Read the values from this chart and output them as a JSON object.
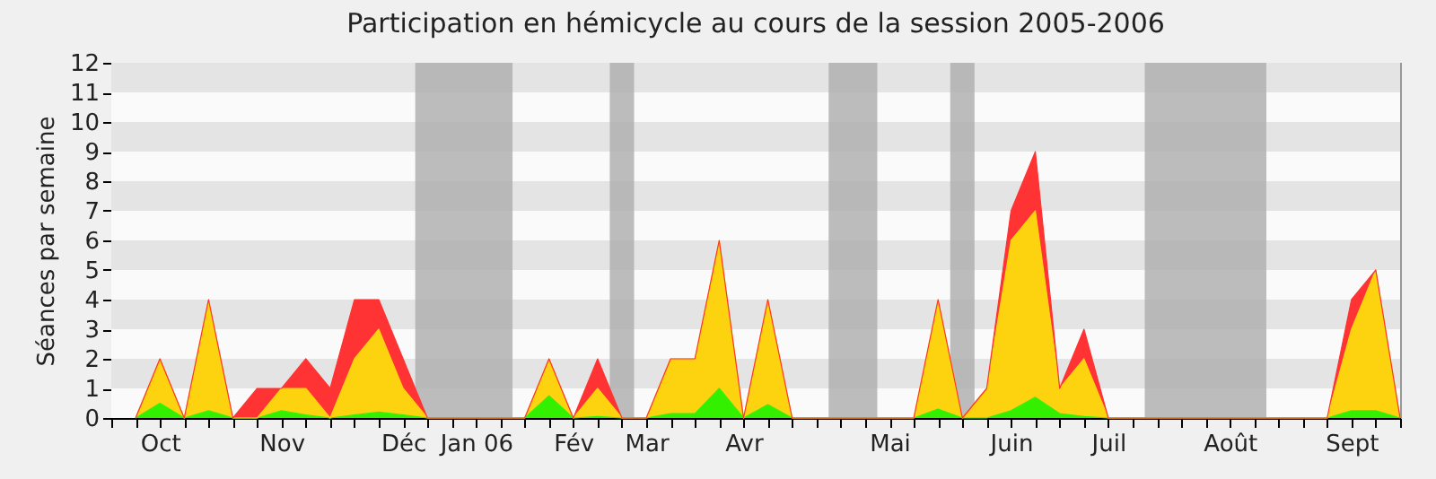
{
  "chart_data": {
    "type": "area",
    "stacked": true,
    "title": "Participation en hémicycle au cours de la session 2005-2006",
    "ylabel": "Séances par semaine",
    "categories": [
      null,
      "Oct",
      null,
      null,
      null,
      null,
      "Nov",
      null,
      null,
      null,
      null,
      "Déc",
      null,
      null,
      "Jan 06",
      null,
      null,
      null,
      "Fév",
      null,
      null,
      "Mar",
      null,
      null,
      null,
      "Avr",
      null,
      null,
      null,
      null,
      null,
      "Mai",
      null,
      null,
      null,
      null,
      "Juin",
      null,
      null,
      null,
      "Juil",
      null,
      null,
      null,
      null,
      "Août",
      null,
      null,
      null,
      null,
      "Sept",
      null,
      null
    ],
    "series": [
      {
        "color": "#33f000",
        "values": [
          0,
          0.5,
          0,
          0.25,
          0,
          0,
          0.25,
          0.1,
          0,
          0.1,
          0.2,
          0.1,
          0,
          0,
          0,
          0,
          0,
          0.75,
          0,
          0.05,
          0,
          0,
          0.15,
          0.15,
          1,
          0,
          0.45,
          0,
          0,
          0,
          0,
          0,
          0,
          0.3,
          0,
          0,
          0.25,
          0.7,
          0.15,
          0.05,
          0,
          0,
          0,
          0,
          0,
          0,
          0,
          0,
          0,
          0,
          0.25,
          0.25,
          0
        ]
      },
      {
        "color": "#fdd20e",
        "values": [
          0,
          1.5,
          0,
          3.75,
          0,
          0,
          0.75,
          0.9,
          0,
          1.9,
          2.8,
          0.9,
          0,
          0,
          0,
          0,
          0,
          1.25,
          0,
          0.95,
          0,
          0,
          1.85,
          1.85,
          5,
          0,
          3.55,
          0,
          0,
          0,
          0,
          0,
          0,
          3.7,
          0,
          1,
          5.75,
          6.3,
          0.85,
          1.95,
          0,
          0,
          0,
          0,
          0,
          0,
          0,
          0,
          0,
          0,
          2.75,
          4.75,
          0
        ]
      },
      {
        "color": "#ff3333",
        "values": [
          0,
          0,
          0,
          0,
          0,
          1,
          0,
          1,
          1,
          2,
          1,
          1,
          0,
          0,
          0,
          0,
          0,
          0,
          0,
          1,
          0,
          0,
          0,
          0,
          0,
          0,
          0,
          0,
          0,
          0,
          0,
          0,
          0,
          0,
          0,
          0,
          1,
          2,
          0,
          1,
          0,
          0,
          0,
          0,
          0,
          0,
          0,
          0,
          0,
          0,
          1,
          0,
          0
        ]
      }
    ],
    "ylim": [
      0,
      12
    ],
    "yticks": [
      0,
      1,
      2,
      3,
      4,
      5,
      6,
      7,
      8,
      9,
      10,
      11,
      12
    ],
    "legend": false
  }
}
